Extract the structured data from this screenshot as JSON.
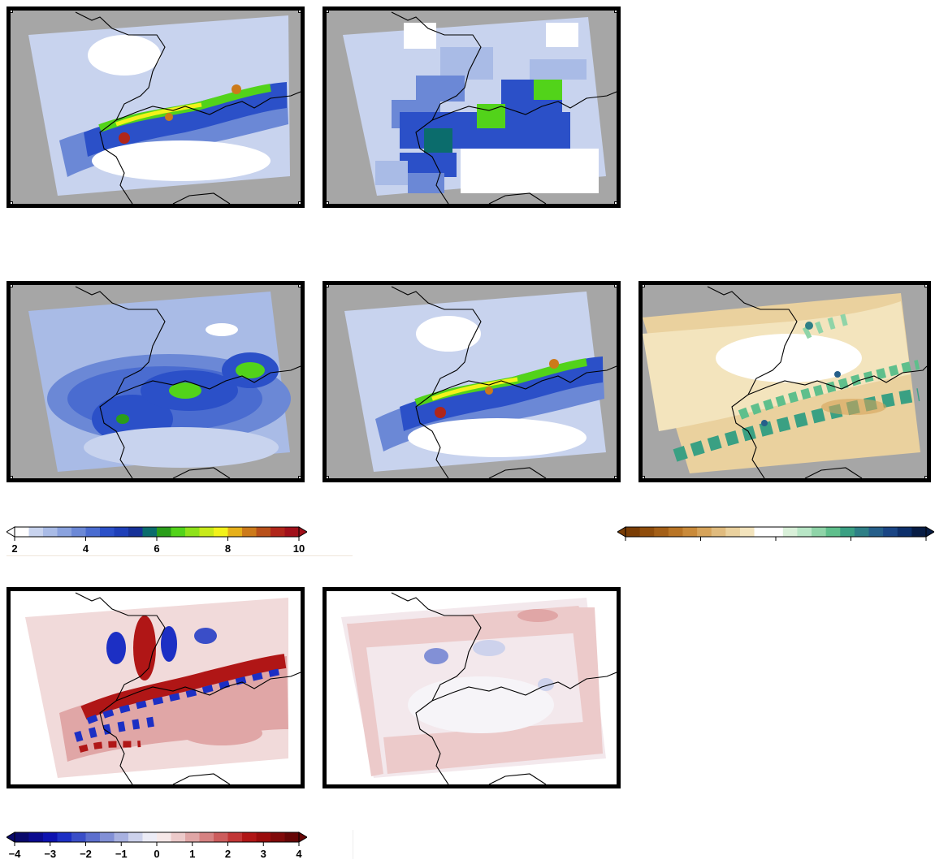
{
  "panels": [
    {
      "id": "hires-precip",
      "style": "precip-detail",
      "background": "#a6a6a6"
    },
    {
      "id": "coarse-precip",
      "style": "precip-blocks",
      "background": "#a6a6a6"
    },
    {
      "id": "smooth-precip",
      "style": "precip-smooth",
      "background": "#a6a6a6"
    },
    {
      "id": "downscaled-precip",
      "style": "precip-detail",
      "background": "#a6a6a6"
    },
    {
      "id": "ratio-field",
      "style": "brown-green",
      "background": "#a6a6a6"
    },
    {
      "id": "diff-1",
      "style": "diverging-strong",
      "background": "#ffffff"
    },
    {
      "id": "diff-2",
      "style": "diverging-weak",
      "background": "#ffffff"
    }
  ],
  "colorbars": {
    "precip": {
      "colors": [
        "#ffffff",
        "#c8d3ee",
        "#a9bbe6",
        "#8aa2de",
        "#6b88d6",
        "#4a6cd0",
        "#2b50c8",
        "#1e3fb8",
        "#163198",
        "#0b6c6c",
        "#2a9d1a",
        "#52d31a",
        "#8ee21a",
        "#c8ea1a",
        "#f2f21a",
        "#e6b01a",
        "#cc7a1a",
        "#b8501a",
        "#b0261a",
        "#a0101a"
      ],
      "ticks": [
        "2",
        "4",
        "6",
        "8",
        "10"
      ]
    },
    "brown_green": {
      "colors": [
        "#7a3d05",
        "#8f4d0c",
        "#a35f17",
        "#b87425",
        "#c98a3a",
        "#d6a35a",
        "#e0bb7e",
        "#ead19e",
        "#f3e4bd",
        "#ffffff",
        "#ffffff",
        "#d9f0d9",
        "#b8e6c6",
        "#8fd4a8",
        "#5fbf8c",
        "#3aa083",
        "#2e7f86",
        "#265f8a",
        "#1a4584",
        "#0d2f6a",
        "#071c44"
      ],
      "ticks": [
        "",
        "",
        "",
        "",
        ""
      ]
    },
    "diverging": {
      "colors": [
        "#08086b",
        "#0a0a8f",
        "#0d12b0",
        "#1c2fc4",
        "#3a4ec8",
        "#5d6fce",
        "#8290d6",
        "#a8b1e0",
        "#cdd2ec",
        "#ececf6",
        "#f6e8e8",
        "#eccaca",
        "#e0a6a6",
        "#d68282",
        "#cc5c5c",
        "#c23636",
        "#b01616",
        "#9a0c0c",
        "#800a0a",
        "#660606"
      ],
      "ticks": [
        "−4",
        "−3",
        "−2",
        "−1",
        "0",
        "1",
        "2",
        "3",
        "4"
      ]
    }
  }
}
